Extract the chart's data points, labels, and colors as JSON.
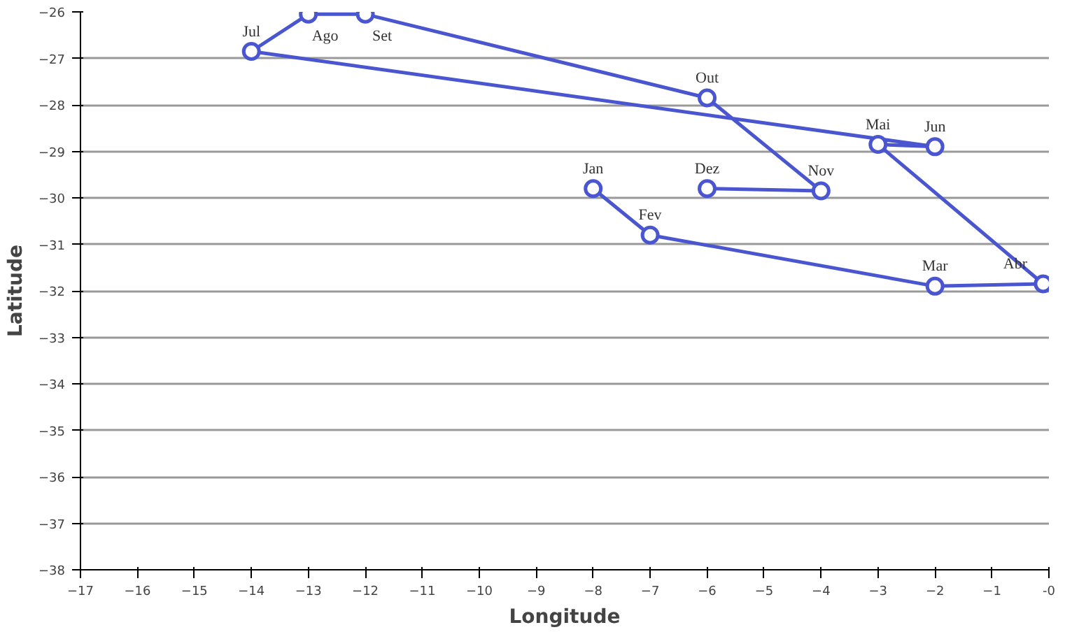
{
  "chart_data": {
    "type": "line",
    "xlabel": "Longitude",
    "ylabel": "Latitude",
    "x": [
      -8,
      -7,
      -2,
      -0.1,
      -3,
      -2,
      -14,
      -13,
      -12,
      -6,
      -4,
      -6
    ],
    "series": [
      {
        "color": "#4a55d0",
        "values": [
          -29.8,
          -30.8,
          -31.9,
          -31.85,
          -28.85,
          -28.9,
          -26.85,
          -26.05,
          -26.05,
          -27.85,
          -29.85,
          -29.8
        ]
      }
    ],
    "annotations": [
      {
        "text": "Jan",
        "x": -8,
        "y": -29.8
      },
      {
        "text": "Fev",
        "x": -7,
        "y": -30.8
      },
      {
        "text": "Mar",
        "x": -2,
        "y": -31.9
      },
      {
        "text": "Abr",
        "x": -0.1,
        "y": -31.85
      },
      {
        "text": "Mai",
        "x": -3,
        "y": -28.85
      },
      {
        "text": "Jun",
        "x": -2,
        "y": -28.9
      },
      {
        "text": "Jul",
        "x": -14,
        "y": -26.85
      },
      {
        "text": "Ago",
        "x": -13,
        "y": -26.05
      },
      {
        "text": "Set",
        "x": -12,
        "y": -26.05
      },
      {
        "text": "Out",
        "x": -6,
        "y": -27.85
      },
      {
        "text": "Nov",
        "x": -4,
        "y": -29.85
      },
      {
        "text": "Dez",
        "x": -6,
        "y": -29.8
      }
    ],
    "xlim": [
      -17,
      0
    ],
    "ylim": [
      -38,
      -26
    ],
    "xticks": [
      -17,
      -16,
      -15,
      -14,
      -13,
      -12,
      -11,
      -10,
      -9,
      -8,
      -7,
      -6,
      -5,
      -4,
      -3,
      -2,
      -1,
      {
        "value": 0,
        "label": "-0"
      }
    ],
    "yticks": [
      -38,
      -37,
      -36,
      -35,
      -34,
      -33,
      -32,
      -31,
      -30,
      -29,
      -28,
      -27,
      -26
    ],
    "grid": "y",
    "marker": "circle",
    "line_style": "solid"
  }
}
